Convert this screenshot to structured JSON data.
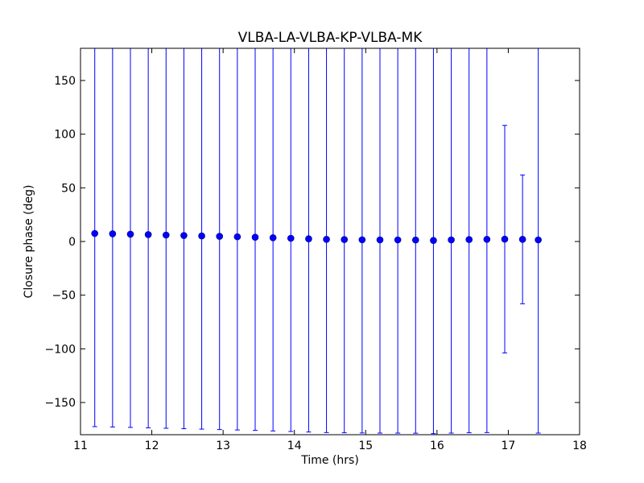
{
  "chart_data": {
    "type": "scatter",
    "title": "VLBA-LA-VLBA-KP-VLBA-MK",
    "xlabel": "Time (hrs)",
    "ylabel": "Closure phase (deg)",
    "xlim": [
      11,
      18
    ],
    "ylim": [
      -180,
      180
    ],
    "xticks": [
      11,
      12,
      13,
      14,
      15,
      16,
      17,
      18
    ],
    "yticks": [
      -150,
      -100,
      -50,
      0,
      50,
      100,
      150
    ],
    "xtick_labels": [
      "11",
      "12",
      "13",
      "14",
      "15",
      "16",
      "17",
      "18"
    ],
    "ytick_labels": [
      "−150",
      "−100",
      "−50",
      "0",
      "50",
      "100",
      "150"
    ],
    "grid": false,
    "marker_color": "#0000ff",
    "errorbar_color": "#0000ff",
    "points": [
      {
        "x": 11.2,
        "y": 7.5,
        "err": 180
      },
      {
        "x": 11.45,
        "y": 7.2,
        "err": 180
      },
      {
        "x": 11.7,
        "y": 6.8,
        "err": 180
      },
      {
        "x": 11.95,
        "y": 6.4,
        "err": 180
      },
      {
        "x": 12.2,
        "y": 6.0,
        "err": 180
      },
      {
        "x": 12.45,
        "y": 5.6,
        "err": 180
      },
      {
        "x": 12.7,
        "y": 5.2,
        "err": 180
      },
      {
        "x": 12.95,
        "y": 4.8,
        "err": 180
      },
      {
        "x": 13.2,
        "y": 4.4,
        "err": 180
      },
      {
        "x": 13.45,
        "y": 4.0,
        "err": 180
      },
      {
        "x": 13.7,
        "y": 3.5,
        "err": 180
      },
      {
        "x": 13.95,
        "y": 3.0,
        "err": 180
      },
      {
        "x": 14.2,
        "y": 2.5,
        "err": 180
      },
      {
        "x": 14.45,
        "y": 2.0,
        "err": 180
      },
      {
        "x": 14.7,
        "y": 1.8,
        "err": 180
      },
      {
        "x": 14.95,
        "y": 1.6,
        "err": 180
      },
      {
        "x": 15.2,
        "y": 1.5,
        "err": 180
      },
      {
        "x": 15.45,
        "y": 1.5,
        "err": 180
      },
      {
        "x": 15.7,
        "y": 1.4,
        "err": 180
      },
      {
        "x": 15.95,
        "y": 1.0,
        "err": 180
      },
      {
        "x": 16.2,
        "y": 1.5,
        "err": 180
      },
      {
        "x": 16.45,
        "y": 1.8,
        "err": 180
      },
      {
        "x": 16.7,
        "y": 2.0,
        "err": 180
      },
      {
        "x": 16.95,
        "y": 2.2,
        "err": 106
      },
      {
        "x": 17.2,
        "y": 2.0,
        "err": 60
      },
      {
        "x": 17.42,
        "y": 1.5,
        "err": 180
      }
    ]
  }
}
